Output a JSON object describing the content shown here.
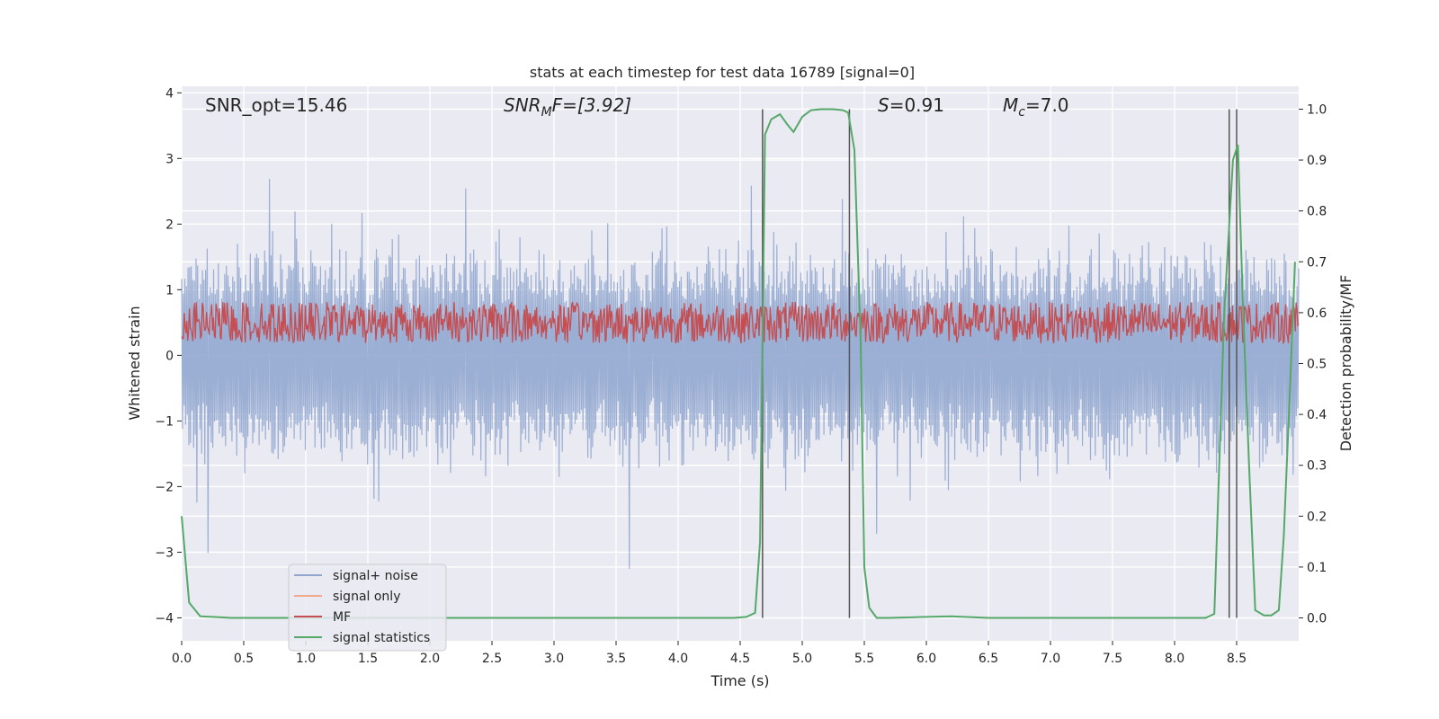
{
  "chart_data": {
    "type": "line",
    "title": "stats at each timestep for test data 16789 [signal=0]",
    "xlabel": "Time (s)",
    "ylabel_left": "Whitened strain",
    "ylabel_right": "Detection probability/MF",
    "xlim": [
      0,
      9.0
    ],
    "ylim_left": [
      -4.35,
      4.1
    ],
    "ylim_right": [
      -0.045,
      1.045
    ],
    "x_ticks": [
      "0.0",
      "0.5",
      "1.0",
      "1.5",
      "2.0",
      "2.5",
      "3.0",
      "3.5",
      "4.0",
      "4.5",
      "5.0",
      "5.5",
      "6.0",
      "6.5",
      "7.0",
      "7.5",
      "8.0",
      "8.5"
    ],
    "y_left_ticks": [
      "−4",
      "−3",
      "−2",
      "−1",
      "0",
      "1",
      "2",
      "3",
      "4"
    ],
    "y_right_ticks": [
      "0.0",
      "0.1",
      "0.2",
      "0.3",
      "0.4",
      "0.5",
      "0.6",
      "0.7",
      "0.8",
      "0.9",
      "1.0"
    ],
    "grid": true,
    "legend_position": "lower-left",
    "annotations": {
      "snr_opt": "SNR_opt=15.46",
      "snr_mf_name": "SNR",
      "snr_mf_sub": "M",
      "snr_mf_tail": "F=[3.92]",
      "s_name": "S",
      "s_value": "=0.91",
      "mc_name": "M",
      "mc_sub": "c",
      "mc_value": "=7.0"
    },
    "series": [
      {
        "name": "signal+ noise",
        "color": "#92a7cf",
        "amplitude_typical": 1.4,
        "amplitude_max": 3.7,
        "y_min": -3.8
      },
      {
        "name": "signal only",
        "color": "#f2a889",
        "values": []
      },
      {
        "name": "MF",
        "color": "#c44e52",
        "band": [
          0.05,
          0.95
        ]
      },
      {
        "name": "signal statistics",
        "color": "#55a868",
        "x": [
          0.0,
          0.06,
          0.15,
          0.25,
          0.4,
          0.6,
          1.0,
          2.0,
          3.0,
          4.0,
          4.45,
          4.55,
          4.62,
          4.66,
          4.7,
          4.75,
          4.82,
          4.88,
          4.93,
          5.0,
          5.07,
          5.15,
          5.25,
          5.33,
          5.37,
          5.42,
          5.47,
          5.5,
          5.54,
          5.6,
          5.7,
          6.0,
          6.2,
          6.5,
          7.0,
          8.0,
          8.25,
          8.32,
          8.4,
          8.47,
          8.51,
          8.55,
          8.6,
          8.65,
          8.72,
          8.78,
          8.84,
          8.88,
          8.93,
          8.97
        ],
        "y": [
          0.2,
          0.03,
          0.003,
          0.002,
          0.0,
          0.0,
          0.0,
          0.0,
          0.0,
          0.0,
          0.0,
          0.002,
          0.01,
          0.15,
          0.95,
          0.98,
          0.99,
          0.97,
          0.955,
          0.985,
          0.998,
          1.0,
          1.0,
          0.998,
          0.993,
          0.92,
          0.55,
          0.1,
          0.02,
          0.0,
          0.0,
          0.002,
          0.003,
          0.0,
          0.0,
          0.0,
          0.0,
          0.008,
          0.6,
          0.9,
          0.93,
          0.62,
          0.3,
          0.015,
          0.005,
          0.005,
          0.015,
          0.16,
          0.45,
          0.7
        ]
      },
      {
        "name": "",
        "color": "#555555",
        "x": [
          4.68,
          5.38,
          8.44,
          8.5
        ],
        "y_range_right": [
          0.0,
          1.0
        ]
      }
    ]
  }
}
